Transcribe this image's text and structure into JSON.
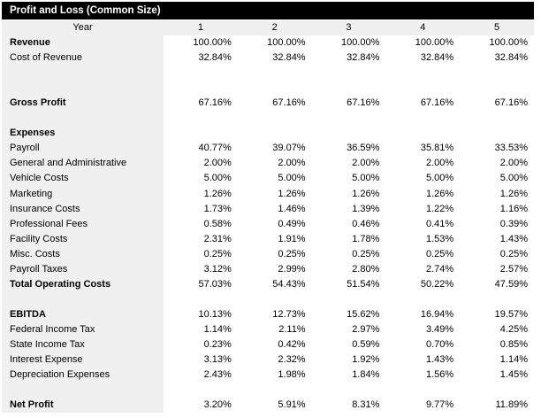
{
  "title": "Profit and Loss (Common Size)",
  "colors": {
    "title_bg": "#000000",
    "title_text": "#ffffff",
    "label_col_bg": "#f0f0f0",
    "data_bg": "#ffffff"
  },
  "header": {
    "label": "Year",
    "columns": [
      "1",
      "2",
      "3",
      "4",
      "5"
    ]
  },
  "rows": [
    {
      "label": "Revenue",
      "bold": true,
      "values": [
        "100.00%",
        "100.00%",
        "100.00%",
        "100.00%",
        "100.00%"
      ]
    },
    {
      "label": "Cost of Revenue",
      "bold": false,
      "values": [
        "32.84%",
        "32.84%",
        "32.84%",
        "32.84%",
        "32.84%"
      ]
    },
    {
      "blank": true
    },
    {
      "blank": true
    },
    {
      "label": "Gross Profit",
      "bold": true,
      "values": [
        "67.16%",
        "67.16%",
        "67.16%",
        "67.16%",
        "67.16%"
      ]
    },
    {
      "blank": true
    },
    {
      "label": "Expenses",
      "bold": true
    },
    {
      "label": "Payroll",
      "bold": false,
      "values": [
        "40.77%",
        "39.07%",
        "36.59%",
        "35.81%",
        "33.53%"
      ]
    },
    {
      "label": "General and Administrative",
      "bold": false,
      "values": [
        "2.00%",
        "2.00%",
        "2.00%",
        "2.00%",
        "2.00%"
      ]
    },
    {
      "label": "Vehicle Costs",
      "bold": false,
      "values": [
        "5.00%",
        "5.00%",
        "5.00%",
        "5.00%",
        "5.00%"
      ]
    },
    {
      "label": "Marketing",
      "bold": false,
      "values": [
        "1.26%",
        "1.26%",
        "1.26%",
        "1.26%",
        "1.26%"
      ]
    },
    {
      "label": "Insurance Costs",
      "bold": false,
      "values": [
        "1.73%",
        "1.46%",
        "1.39%",
        "1.22%",
        "1.16%"
      ]
    },
    {
      "label": "Professional Fees",
      "bold": false,
      "values": [
        "0.58%",
        "0.49%",
        "0.46%",
        "0.41%",
        "0.39%"
      ]
    },
    {
      "label": "Facility Costs",
      "bold": false,
      "values": [
        "2.31%",
        "1.91%",
        "1.78%",
        "1.53%",
        "1.43%"
      ]
    },
    {
      "label": "Misc. Costs",
      "bold": false,
      "values": [
        "0.25%",
        "0.25%",
        "0.25%",
        "0.25%",
        "0.25%"
      ]
    },
    {
      "label": "Payroll Taxes",
      "bold": false,
      "values": [
        "3.12%",
        "2.99%",
        "2.80%",
        "2.74%",
        "2.57%"
      ]
    },
    {
      "label": "Total Operating Costs",
      "bold": true,
      "values": [
        "57.03%",
        "54.43%",
        "51.54%",
        "50.22%",
        "47.59%"
      ]
    },
    {
      "blank": true
    },
    {
      "label": "EBITDA",
      "bold": true,
      "values": [
        "10.13%",
        "12.73%",
        "15.62%",
        "16.94%",
        "19.57%"
      ]
    },
    {
      "label": "Federal Income Tax",
      "bold": false,
      "values": [
        "1.14%",
        "2.11%",
        "2.97%",
        "3.49%",
        "4.25%"
      ]
    },
    {
      "label": "State Income Tax",
      "bold": false,
      "values": [
        "0.23%",
        "0.42%",
        "0.59%",
        "0.70%",
        "0.85%"
      ]
    },
    {
      "label": "Interest Expense",
      "bold": false,
      "values": [
        "3.13%",
        "2.32%",
        "1.92%",
        "1.43%",
        "1.14%"
      ]
    },
    {
      "label": "Depreciation Expenses",
      "bold": false,
      "values": [
        "2.43%",
        "1.98%",
        "1.84%",
        "1.56%",
        "1.45%"
      ]
    },
    {
      "blank": true
    },
    {
      "label": "Net Profit",
      "bold": true,
      "values": [
        "3.20%",
        "5.91%",
        "8.31%",
        "9.77%",
        "11.89%"
      ]
    }
  ]
}
